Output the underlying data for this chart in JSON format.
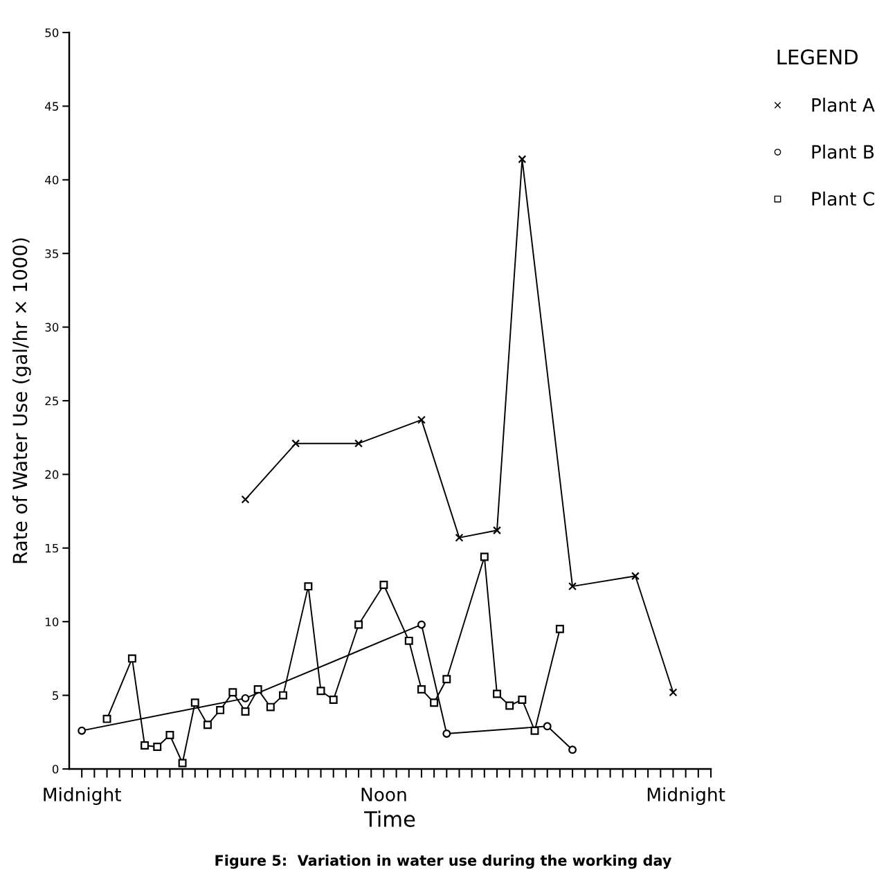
{
  "chart_data": {
    "type": "line",
    "xlabel": "Time",
    "ylabel": "Rate of Water Use (gal/hr × 1000)",
    "legend_title": "LEGEND",
    "annotations": [
      "Figure 5:  Variation in water use during the working day"
    ],
    "ylim": [
      0,
      50
    ],
    "yticks": [
      0,
      5,
      10,
      15,
      20,
      25,
      30,
      35,
      40,
      45,
      50
    ],
    "categories": [
      "Midnight",
      null,
      null,
      null,
      null,
      null,
      null,
      null,
      null,
      null,
      null,
      null,
      null,
      null,
      null,
      null,
      null,
      null,
      null,
      null,
      null,
      null,
      null,
      null,
      "Noon",
      null,
      null,
      null,
      null,
      null,
      null,
      null,
      null,
      null,
      null,
      null,
      null,
      null,
      null,
      null,
      null,
      null,
      null,
      null,
      null,
      null,
      null,
      null,
      "Midnight",
      null,
      null
    ],
    "grid": false,
    "legend": "right",
    "line_style": "solid",
    "series": [
      {
        "name": "Plant A",
        "color": "#000000",
        "marker": "cross",
        "values": [
          null,
          null,
          null,
          null,
          null,
          null,
          null,
          null,
          null,
          null,
          null,
          null,
          null,
          18.3,
          null,
          null,
          null,
          22.1,
          null,
          null,
          null,
          null,
          22.1,
          null,
          null,
          null,
          null,
          23.7,
          null,
          null,
          15.7,
          null,
          null,
          16.2,
          null,
          41.4,
          null,
          null,
          null,
          12.4,
          null,
          null,
          null,
          null,
          13.1,
          null,
          null,
          5.2,
          null,
          null,
          null
        ]
      },
      {
        "name": "Plant B",
        "color": "#000000",
        "marker": "circle",
        "values": [
          2.6,
          null,
          null,
          null,
          null,
          null,
          null,
          null,
          null,
          null,
          null,
          null,
          null,
          4.8,
          null,
          null,
          null,
          null,
          null,
          null,
          null,
          null,
          null,
          null,
          null,
          null,
          null,
          9.8,
          null,
          2.4,
          null,
          null,
          null,
          null,
          null,
          null,
          null,
          2.9,
          null,
          1.3,
          null,
          null,
          null,
          null,
          null,
          null,
          null,
          null,
          null,
          null,
          null
        ]
      },
      {
        "name": "Plant C",
        "color": "#000000",
        "marker": "square",
        "values": [
          null,
          null,
          3.4,
          null,
          7.5,
          1.6,
          1.5,
          2.3,
          0.4,
          4.5,
          3.0,
          4.0,
          5.2,
          3.9,
          5.4,
          4.2,
          5.0,
          null,
          12.4,
          5.3,
          4.7,
          null,
          9.8,
          null,
          12.5,
          null,
          8.7,
          5.4,
          4.5,
          6.1,
          null,
          null,
          14.4,
          5.1,
          4.3,
          4.7,
          2.6,
          null,
          9.5,
          null,
          null,
          null,
          null,
          null,
          null,
          null,
          null,
          null,
          null,
          null,
          null
        ]
      }
    ]
  }
}
